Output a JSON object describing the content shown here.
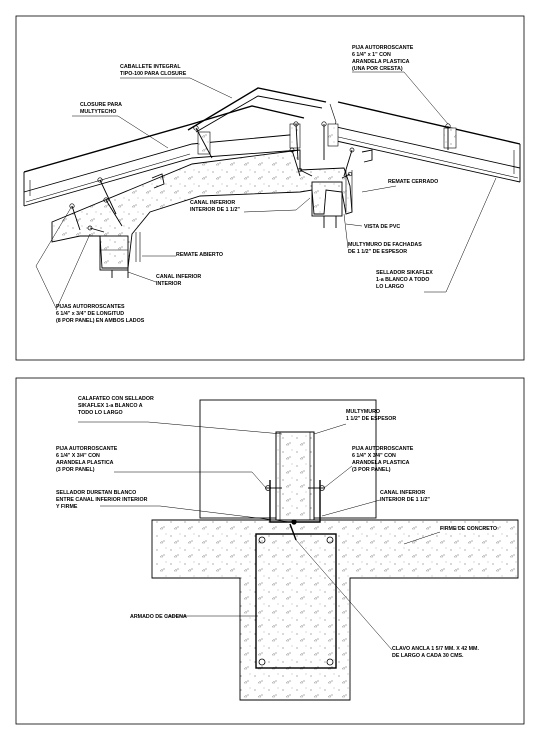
{
  "top_detail": {
    "labels": {
      "caballete_1": "CABALLETE INTEGRAL",
      "caballete_2": "TIPO-100 PARA CLOSURE",
      "pija_top_1": "PIJA AUTORROSCANTE",
      "pija_top_2": "6 1/4\" x 1\" CON",
      "pija_top_3": "ARANDELA PLASTICA",
      "pija_top_4": "(UNA POR CRESTA)",
      "closure_1": "CLOSURE PARA",
      "closure_2": "MULTYTECHO",
      "remate_cerrado": "REMATE CERRADO",
      "canal_ext_1": "CANAL INFERIOR",
      "canal_ext_2": "INTERIOR DE 1 1/2\"",
      "vista_pvc": "VISTA DE PVC",
      "multymuro_1": "MULTYMURO DE FACHADAS",
      "multymuro_2": "DE 1 1/2\" DE ESPESOR",
      "remate_abierto": "REMATE ABIERTO",
      "canal_int_1": "CANAL INFERIOR",
      "canal_int_2": "INTERIOR",
      "sellador_1": "SELLADOR SIKAFLEX",
      "sellador_2": "1-a BLANCO A TODO",
      "sellador_3": "LO LARGO",
      "pijas_1": "PIJAS AUTORROSCANTES",
      "pijas_2": "6 1/4\" x 3/4\" DE LONGITUD",
      "pijas_3": "(8 POR PANEL) EN AMBOS LADOS"
    }
  },
  "bottom_detail": {
    "labels": {
      "calafateo_1": "CALAFATEO CON SELLADOR",
      "calafateo_2": "SIKAFLEX 1-a BLANCO A",
      "calafateo_3": "TODO LO LARGO",
      "multymuro_1": "MULTYMURO",
      "multymuro_2": "1 1/2\" DE ESPESOR",
      "pija_l_1": "PIJA AUTORROSCANTE",
      "pija_l_2": "6 1/4\" X 3/4\" CON",
      "pija_l_3": "ARANDELA PLASTICA",
      "pija_l_4": "(3 POR PANEL)",
      "pija_r_1": "PIJA AUTORROSCANTE",
      "pija_r_2": "6 1/4\" X 3/4\" CON",
      "pija_r_3": "ARANDELA PLASTICA",
      "pija_r_4": "(3 POR PANEL)",
      "sellador_1": "SELLADOR DURETAN BLANCO",
      "sellador_2": "ENTRE CANAL INFERIOR INTERIOR",
      "sellador_3": "Y FIRME",
      "canal_1": "CANAL INFERIOR",
      "canal_2": "INTERIOR DE 1 1/2\"",
      "firme": "FIRME DE CONCRETO",
      "armado": "ARMADO DE CADENA",
      "clavo_1": "CLAVO ANCLA 1 5/7 MM. X 42 MM.",
      "clavo_2": "DE LARGO A CADA 30 CMS."
    }
  }
}
